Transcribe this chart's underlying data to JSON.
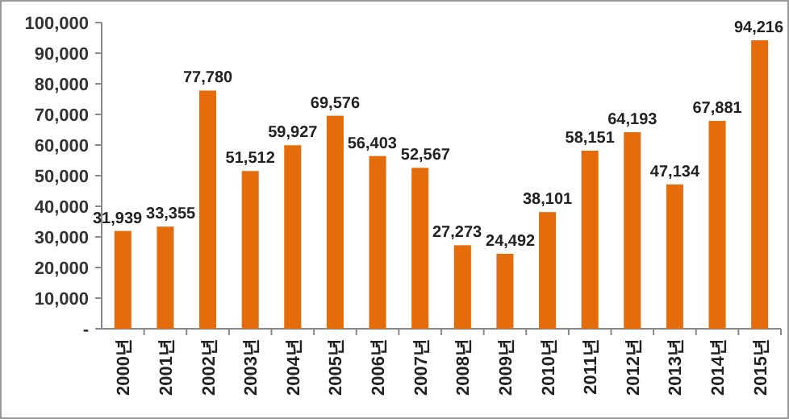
{
  "chart_data": {
    "type": "bar",
    "categories": [
      "2000년",
      "2001년",
      "2002년",
      "2003년",
      "2004년",
      "2005년",
      "2006년",
      "2007년",
      "2008년",
      "2009년",
      "2010년",
      "2011년",
      "2012년",
      "2013년",
      "2014년",
      "2015년"
    ],
    "values": [
      31939,
      33355,
      77780,
      51512,
      59927,
      69576,
      56403,
      52567,
      27273,
      24492,
      38101,
      58151,
      64193,
      47134,
      67881,
      94216
    ],
    "value_labels": [
      "31,939",
      "33,355",
      "77,780",
      "51,512",
      "59,927",
      "69,576",
      "56,403",
      "52,567",
      "27,273",
      "24,492",
      "38,101",
      "58,151",
      "64,193",
      "47,134",
      "67,881",
      "94,216"
    ],
    "color": "#e46c0a",
    "ylim": [
      0,
      100000
    ],
    "yticks": [
      {
        "value": 0,
        "label": "-"
      },
      {
        "value": 10000,
        "label": "10,000"
      },
      {
        "value": 20000,
        "label": "20,000"
      },
      {
        "value": 30000,
        "label": "30,000"
      },
      {
        "value": 40000,
        "label": "40,000"
      },
      {
        "value": 50000,
        "label": "50,000"
      },
      {
        "value": 60000,
        "label": "60,000"
      },
      {
        "value": 70000,
        "label": "70,000"
      },
      {
        "value": 80000,
        "label": "80,000"
      },
      {
        "value": 90000,
        "label": "90,000"
      },
      {
        "value": 100000,
        "label": "100,000"
      }
    ],
    "grid": false
  }
}
